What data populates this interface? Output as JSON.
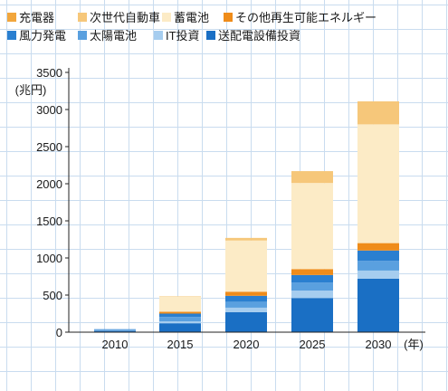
{
  "chart_data": {
    "type": "bar",
    "stacked": true,
    "categories": [
      "2010",
      "2015",
      "2020",
      "2025",
      "2030"
    ],
    "x_unit": "(年)",
    "y_unit": "(兆円)",
    "ylim": [
      0,
      3500
    ],
    "yticks": [
      0,
      500,
      1000,
      1500,
      2000,
      2500,
      3000,
      3500
    ],
    "legend_position": "top",
    "series": [
      {
        "name": "送配電設備投資",
        "color": "#1a6fc4",
        "values": [
          20,
          120,
          270,
          460,
          720
        ]
      },
      {
        "name": "IT投資",
        "color": "#a6cdef",
        "values": [
          5,
          25,
          60,
          100,
          110
        ]
      },
      {
        "name": "太陽電池",
        "color": "#5aa0df",
        "values": [
          10,
          60,
          80,
          110,
          130
        ]
      },
      {
        "name": "風力発電",
        "color": "#2a7fd0",
        "values": [
          5,
          45,
          80,
          100,
          140
        ]
      },
      {
        "name": "その他再生可能エネルギー",
        "color": "#ef8c1a",
        "values": [
          0,
          25,
          55,
          80,
          100
        ]
      },
      {
        "name": "蓄電池",
        "color": "#fcebc6",
        "values": [
          0,
          205,
          690,
          1160,
          1600
        ]
      },
      {
        "name": "次世代自動車",
        "color": "#f6c77a",
        "values": [
          0,
          5,
          35,
          160,
          310
        ]
      },
      {
        "name": "充電器",
        "color": "#f2a63c",
        "values": [
          0,
          0,
          0,
          0,
          0
        ]
      }
    ]
  },
  "legend": {
    "row1": [
      {
        "label": "充電器",
        "color": "#f2a63c"
      },
      {
        "label": "次世代自動車",
        "color": "#f6c77a"
      },
      {
        "label": "蓄電池",
        "color": "#fcebc6"
      },
      {
        "label": "その他再生可能エネルギー",
        "color": "#ef8c1a"
      }
    ],
    "row2": [
      {
        "label": "風力発電",
        "color": "#2a7fd0"
      },
      {
        "label": "太陽電池",
        "color": "#5aa0df"
      },
      {
        "label": "IT投資",
        "color": "#a6cdef"
      },
      {
        "label": "送配電設備投資",
        "color": "#1a6fc4"
      }
    ]
  }
}
